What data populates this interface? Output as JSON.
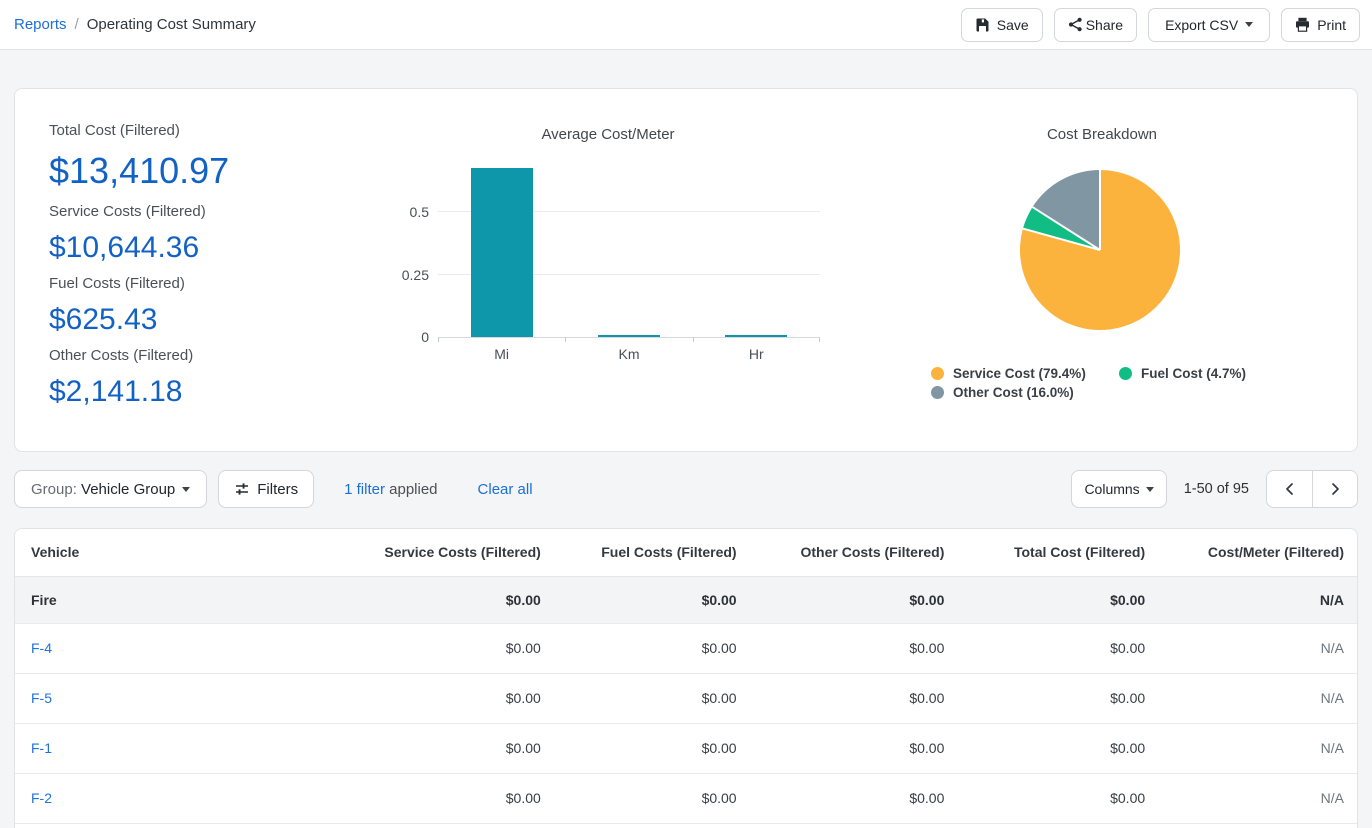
{
  "breadcrumb": {
    "parent": "Reports",
    "separator": "/",
    "current": "Operating Cost Summary"
  },
  "actions": {
    "save": "Save",
    "share": "Share",
    "export_csv": "Export CSV",
    "print": "Print"
  },
  "summary_stats": [
    {
      "label": "Total Cost (Filtered)",
      "value": "$13,410.97"
    },
    {
      "label": "Service Costs (Filtered)",
      "value": "$10,644.36"
    },
    {
      "label": "Fuel Costs (Filtered)",
      "value": "$625.43"
    },
    {
      "label": "Other Costs (Filtered)",
      "value": "$2,141.18"
    }
  ],
  "chart_data": [
    {
      "type": "bar",
      "title": "Average Cost/Meter",
      "categories": [
        "Mi",
        "Km",
        "Hr"
      ],
      "values": [
        0.676,
        0.005,
        0.005
      ],
      "yticks": [
        0,
        0.25,
        0.5
      ],
      "ylim": [
        0,
        0.676
      ],
      "bar_color": "#0e97ab",
      "grid": true,
      "legend": false
    },
    {
      "type": "pie",
      "title": "Cost Breakdown",
      "slices": [
        {
          "label": "Service Cost (79.4%)",
          "value": 79.4,
          "color": "#fbb33d"
        },
        {
          "label": "Fuel Cost (4.7%)",
          "value": 4.7,
          "color": "#12bc85"
        },
        {
          "label": "Other Cost (16.0%)",
          "value": 16.0,
          "color": "#8096a3"
        }
      ],
      "legend_position": "bottom"
    }
  ],
  "toolbar": {
    "group_label": "Group:",
    "group_value": "Vehicle Group",
    "filters": "Filters",
    "filter_count": "1 filter",
    "filter_applied": "applied",
    "clear_all": "Clear all",
    "columns": "Columns",
    "range": "1-50 of 95"
  },
  "table": {
    "columns": [
      "Vehicle",
      "Service Costs (Filtered)",
      "Fuel Costs (Filtered)",
      "Other Costs (Filtered)",
      "Total Cost (Filtered)",
      "Cost/Meter (Filtered)"
    ],
    "group_row": {
      "name": "Fire",
      "cells": [
        "$0.00",
        "$0.00",
        "$0.00",
        "$0.00",
        "N/A"
      ]
    },
    "rows": [
      {
        "name": "F-4",
        "cells": [
          "$0.00",
          "$0.00",
          "$0.00",
          "$0.00",
          "N/A"
        ]
      },
      {
        "name": "F-5",
        "cells": [
          "$0.00",
          "$0.00",
          "$0.00",
          "$0.00",
          "N/A"
        ]
      },
      {
        "name": "F-1",
        "cells": [
          "$0.00",
          "$0.00",
          "$0.00",
          "$0.00",
          "N/A"
        ]
      },
      {
        "name": "F-2",
        "cells": [
          "$0.00",
          "$0.00",
          "$0.00",
          "$0.00",
          "N/A"
        ]
      }
    ]
  }
}
